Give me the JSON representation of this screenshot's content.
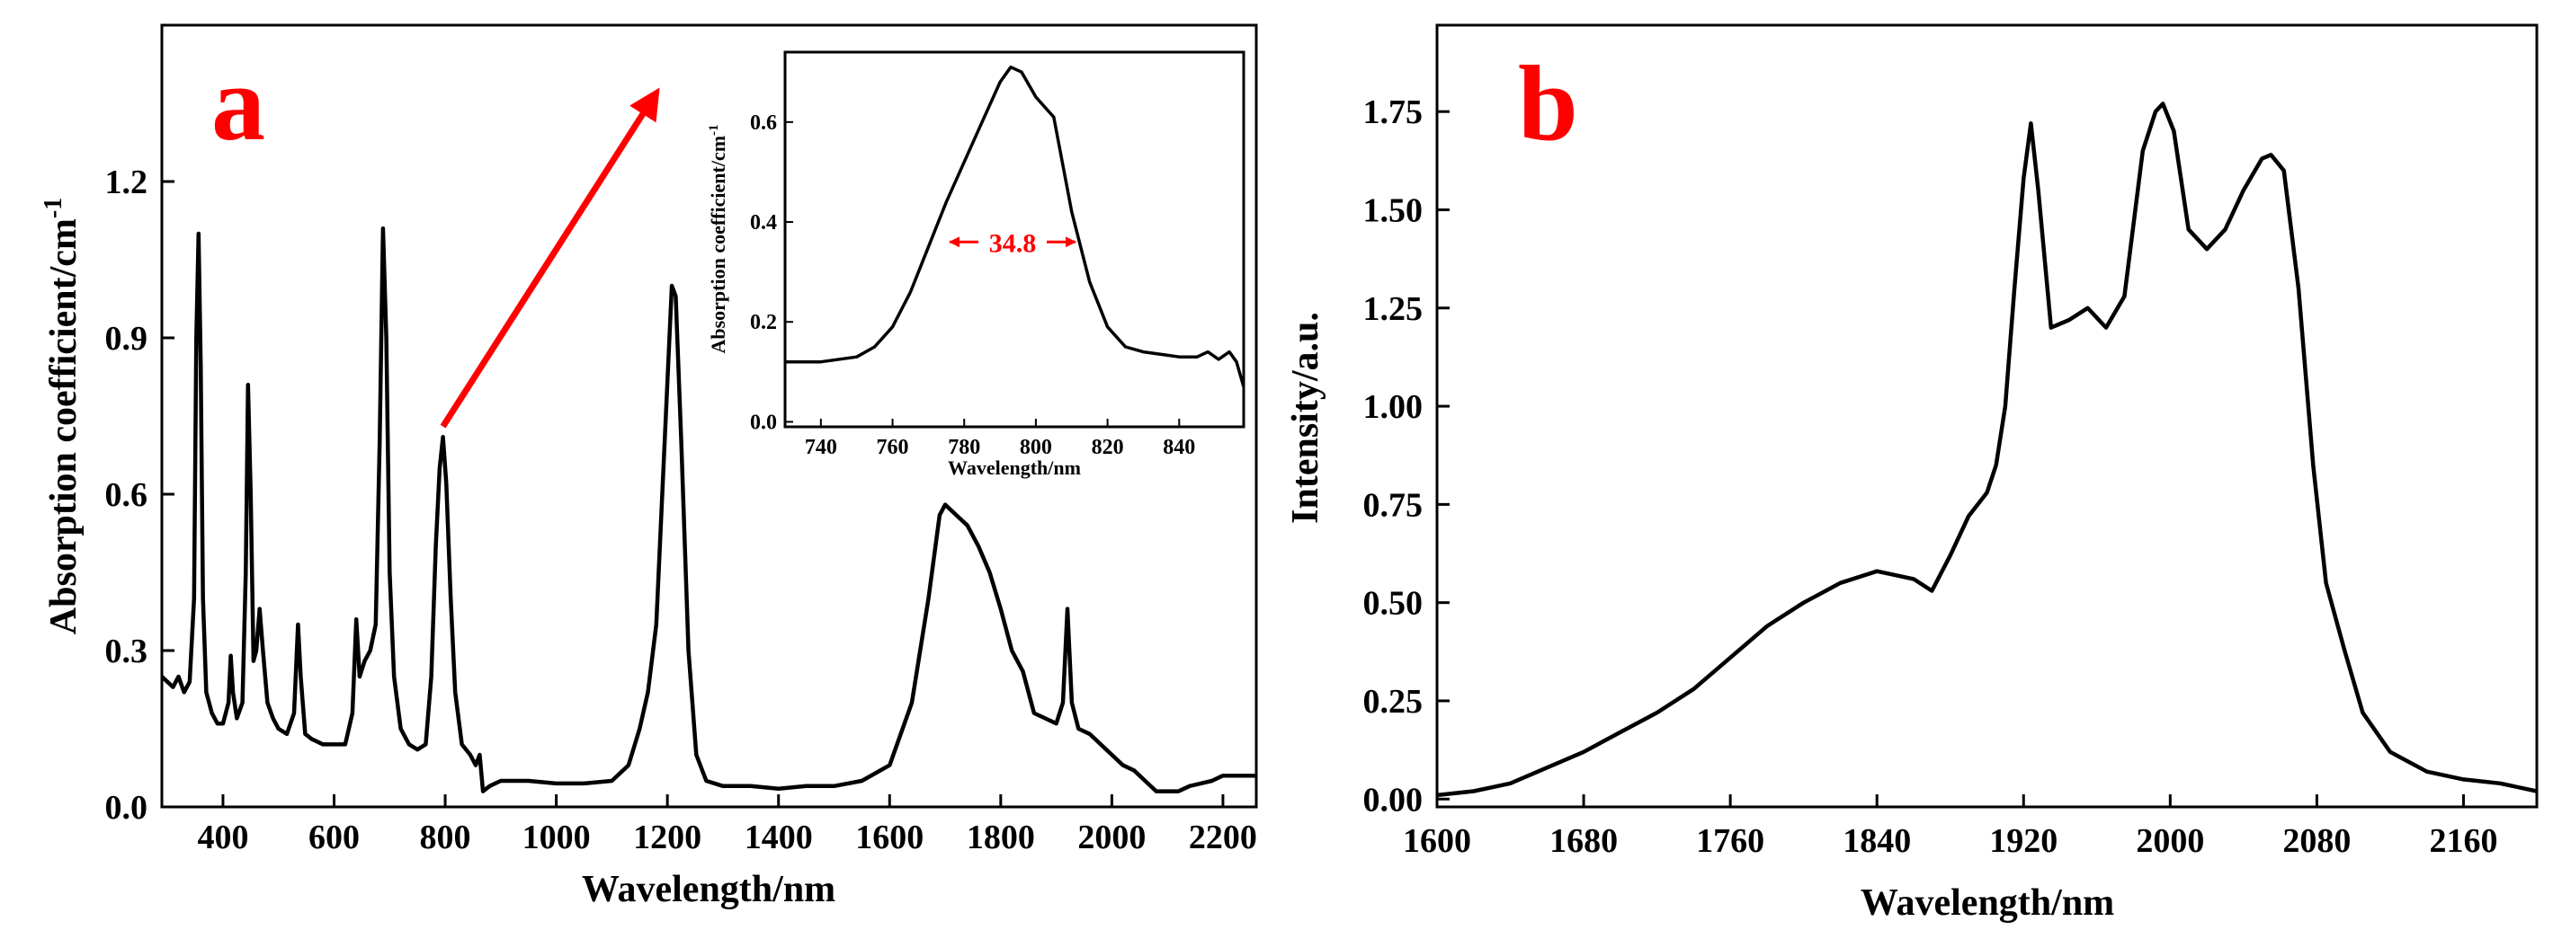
{
  "chart_data": [
    {
      "panel": "a",
      "type": "line",
      "xlabel": "Wavelength/nm",
      "ylabel": "Absorption coefficient/cm",
      "ylabel_superscript": "-1",
      "xlim": [
        290,
        2260
      ],
      "ylim": [
        0,
        1.5
      ],
      "xticks": [
        400,
        600,
        800,
        1000,
        1200,
        1400,
        1600,
        1800,
        2000,
        2200
      ],
      "yticks": [
        0.0,
        0.3,
        0.6,
        0.9,
        1.2
      ],
      "ytick_labels": [
        "0.0",
        "0.3",
        "0.6",
        "0.9",
        "1.2"
      ],
      "series": [
        {
          "name": "absorption",
          "points": [
            [
              290,
              0.25
            ],
            [
              300,
              0.24
            ],
            [
              310,
              0.23
            ],
            [
              320,
              0.25
            ],
            [
              330,
              0.22
            ],
            [
              340,
              0.24
            ],
            [
              348,
              0.4
            ],
            [
              352,
              0.9
            ],
            [
              356,
              1.1
            ],
            [
              360,
              0.85
            ],
            [
              364,
              0.4
            ],
            [
              370,
              0.22
            ],
            [
              380,
              0.18
            ],
            [
              390,
              0.16
            ],
            [
              400,
              0.16
            ],
            [
              410,
              0.2
            ],
            [
              414,
              0.29
            ],
            [
              418,
              0.22
            ],
            [
              425,
              0.17
            ],
            [
              435,
              0.2
            ],
            [
              441,
              0.45
            ],
            [
              445,
              0.81
            ],
            [
              450,
              0.6
            ],
            [
              455,
              0.28
            ],
            [
              460,
              0.3
            ],
            [
              466,
              0.38
            ],
            [
              472,
              0.3
            ],
            [
              480,
              0.2
            ],
            [
              490,
              0.17
            ],
            [
              500,
              0.15
            ],
            [
              515,
              0.14
            ],
            [
              528,
              0.18
            ],
            [
              535,
              0.35
            ],
            [
              540,
              0.25
            ],
            [
              548,
              0.14
            ],
            [
              560,
              0.13
            ],
            [
              580,
              0.12
            ],
            [
              600,
              0.12
            ],
            [
              620,
              0.12
            ],
            [
              633,
              0.18
            ],
            [
              640,
              0.36
            ],
            [
              646,
              0.25
            ],
            [
              655,
              0.28
            ],
            [
              665,
              0.3
            ],
            [
              675,
              0.35
            ],
            [
              682,
              0.7
            ],
            [
              688,
              1.11
            ],
            [
              694,
              0.9
            ],
            [
              700,
              0.45
            ],
            [
              708,
              0.25
            ],
            [
              720,
              0.15
            ],
            [
              735,
              0.12
            ],
            [
              750,
              0.11
            ],
            [
              765,
              0.12
            ],
            [
              775,
              0.25
            ],
            [
              783,
              0.5
            ],
            [
              790,
              0.65
            ],
            [
              796,
              0.71
            ],
            [
              802,
              0.62
            ],
            [
              810,
              0.4
            ],
            [
              818,
              0.22
            ],
            [
              830,
              0.12
            ],
            [
              845,
              0.1
            ],
            [
              855,
              0.08
            ],
            [
              862,
              0.1
            ],
            [
              868,
              0.03
            ],
            [
              880,
              0.04
            ],
            [
              900,
              0.05
            ],
            [
              950,
              0.05
            ],
            [
              1000,
              0.045
            ],
            [
              1050,
              0.045
            ],
            [
              1100,
              0.05
            ],
            [
              1130,
              0.08
            ],
            [
              1150,
              0.15
            ],
            [
              1165,
              0.22
            ],
            [
              1180,
              0.35
            ],
            [
              1195,
              0.7
            ],
            [
              1208,
              1.0
            ],
            [
              1215,
              0.98
            ],
            [
              1225,
              0.7
            ],
            [
              1238,
              0.3
            ],
            [
              1252,
              0.1
            ],
            [
              1270,
              0.05
            ],
            [
              1300,
              0.04
            ],
            [
              1350,
              0.04
            ],
            [
              1400,
              0.035
            ],
            [
              1450,
              0.04
            ],
            [
              1500,
              0.04
            ],
            [
              1550,
              0.05
            ],
            [
              1600,
              0.08
            ],
            [
              1640,
              0.2
            ],
            [
              1670,
              0.4
            ],
            [
              1690,
              0.56
            ],
            [
              1700,
              0.58
            ],
            [
              1720,
              0.56
            ],
            [
              1740,
              0.54
            ],
            [
              1760,
              0.5
            ],
            [
              1780,
              0.45
            ],
            [
              1800,
              0.38
            ],
            [
              1820,
              0.3
            ],
            [
              1840,
              0.26
            ],
            [
              1860,
              0.18
            ],
            [
              1880,
              0.17
            ],
            [
              1900,
              0.16
            ],
            [
              1912,
              0.2
            ],
            [
              1920,
              0.38
            ],
            [
              1928,
              0.2
            ],
            [
              1940,
              0.15
            ],
            [
              1960,
              0.14
            ],
            [
              1980,
              0.12
            ],
            [
              2000,
              0.1
            ],
            [
              2020,
              0.08
            ],
            [
              2040,
              0.07
            ],
            [
              2060,
              0.05
            ],
            [
              2080,
              0.03
            ],
            [
              2100,
              0.03
            ],
            [
              2120,
              0.03
            ],
            [
              2140,
              0.04
            ],
            [
              2160,
              0.045
            ],
            [
              2180,
              0.05
            ],
            [
              2200,
              0.06
            ],
            [
              2220,
              0.06
            ],
            [
              2240,
              0.06
            ],
            [
              2260,
              0.06
            ]
          ]
        }
      ],
      "annotations": [
        {
          "type": "arrow",
          "color": "#ff0000",
          "from": [
            796,
            0.73
          ],
          "to": [
            1180,
            1.37
          ]
        }
      ],
      "inset": {
        "type": "line",
        "xlabel": "Wavelength/nm",
        "ylabel": "Absorption coefficient/cm",
        "ylabel_superscript": "-1",
        "xlim": [
          730,
          858
        ],
        "ylim": [
          -0.01,
          0.74
        ],
        "xticks": [
          740,
          760,
          780,
          800,
          820,
          840
        ],
        "yticks": [
          0.0,
          0.2,
          0.4,
          0.6
        ],
        "ytick_labels": [
          "0.0",
          "0.2",
          "0.4",
          "0.6"
        ],
        "fwhm_label": "34.8",
        "fwhm_range": [
          776,
          811
        ],
        "fwhm_level": 0.36,
        "fwhm_color": "#ff0000",
        "series": [
          {
            "name": "absorption-zoom",
            "points": [
              [
                730,
                0.12
              ],
              [
                740,
                0.12
              ],
              [
                750,
                0.13
              ],
              [
                755,
                0.15
              ],
              [
                760,
                0.19
              ],
              [
                765,
                0.26
              ],
              [
                770,
                0.35
              ],
              [
                775,
                0.44
              ],
              [
                780,
                0.52
              ],
              [
                785,
                0.6
              ],
              [
                790,
                0.68
              ],
              [
                793,
                0.71
              ],
              [
                796,
                0.7
              ],
              [
                800,
                0.65
              ],
              [
                805,
                0.61
              ],
              [
                810,
                0.42
              ],
              [
                815,
                0.28
              ],
              [
                820,
                0.19
              ],
              [
                825,
                0.15
              ],
              [
                830,
                0.14
              ],
              [
                835,
                0.135
              ],
              [
                840,
                0.13
              ],
              [
                845,
                0.13
              ],
              [
                848,
                0.14
              ],
              [
                851,
                0.125
              ],
              [
                854,
                0.14
              ],
              [
                856,
                0.12
              ],
              [
                858,
                0.07
              ]
            ]
          }
        ]
      }
    },
    {
      "panel": "b",
      "type": "line",
      "xlabel": "Wavelength/nm",
      "ylabel": "Intensity/a.u.",
      "xlim": [
        1600,
        2200
      ],
      "ylim": [
        -0.02,
        1.97
      ],
      "xticks": [
        1600,
        1680,
        1760,
        1840,
        1920,
        2000,
        2080,
        2160
      ],
      "yticks": [
        0.0,
        0.25,
        0.5,
        0.75,
        1.0,
        1.25,
        1.5,
        1.75
      ],
      "ytick_labels": [
        "0.00",
        "0.25",
        "0.50",
        "0.75",
        "1.00",
        "1.25",
        "1.50",
        "1.75"
      ],
      "series": [
        {
          "name": "emission",
          "points": [
            [
              1600,
              0.01
            ],
            [
              1620,
              0.02
            ],
            [
              1640,
              0.04
            ],
            [
              1660,
              0.08
            ],
            [
              1680,
              0.12
            ],
            [
              1700,
              0.17
            ],
            [
              1720,
              0.22
            ],
            [
              1740,
              0.28
            ],
            [
              1760,
              0.36
            ],
            [
              1780,
              0.44
            ],
            [
              1800,
              0.5
            ],
            [
              1820,
              0.55
            ],
            [
              1840,
              0.58
            ],
            [
              1860,
              0.56
            ],
            [
              1870,
              0.53
            ],
            [
              1880,
              0.62
            ],
            [
              1890,
              0.72
            ],
            [
              1900,
              0.78
            ],
            [
              1905,
              0.85
            ],
            [
              1910,
              1.0
            ],
            [
              1915,
              1.3
            ],
            [
              1920,
              1.58
            ],
            [
              1924,
              1.72
            ],
            [
              1928,
              1.55
            ],
            [
              1935,
              1.2
            ],
            [
              1945,
              1.22
            ],
            [
              1955,
              1.25
            ],
            [
              1965,
              1.2
            ],
            [
              1975,
              1.28
            ],
            [
              1985,
              1.65
            ],
            [
              1992,
              1.75
            ],
            [
              1996,
              1.77
            ],
            [
              2002,
              1.7
            ],
            [
              2010,
              1.45
            ],
            [
              2020,
              1.4
            ],
            [
              2030,
              1.45
            ],
            [
              2040,
              1.55
            ],
            [
              2050,
              1.63
            ],
            [
              2055,
              1.64
            ],
            [
              2062,
              1.6
            ],
            [
              2070,
              1.3
            ],
            [
              2078,
              0.85
            ],
            [
              2085,
              0.55
            ],
            [
              2095,
              0.38
            ],
            [
              2105,
              0.22
            ],
            [
              2120,
              0.12
            ],
            [
              2140,
              0.07
            ],
            [
              2160,
              0.05
            ],
            [
              2180,
              0.04
            ],
            [
              2200,
              0.02
            ]
          ]
        }
      ]
    }
  ],
  "labels": {
    "panel_a": "a",
    "panel_b": "b"
  }
}
